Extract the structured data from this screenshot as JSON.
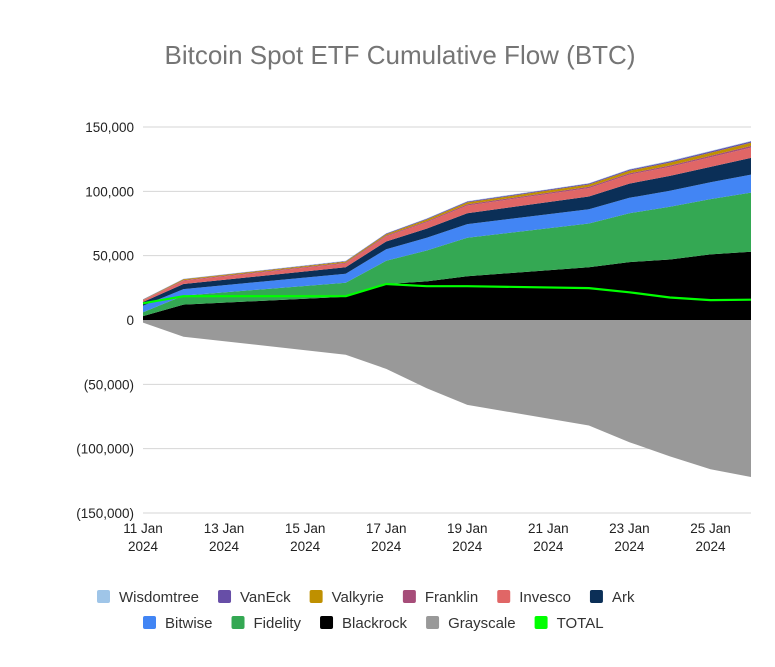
{
  "chart_data": {
    "type": "area",
    "title": "Bitcoin Spot ETF Cumulative Flow (BTC)",
    "xlabel": "",
    "ylabel": "",
    "ylim": [
      -150000,
      150000
    ],
    "yticks": [
      150000,
      100000,
      50000,
      0,
      -50000,
      -100000,
      -150000
    ],
    "ytick_labels": [
      "150,000",
      "100,000",
      "50,000",
      "0",
      "(50,000)",
      "(100,000)",
      "(150,000)"
    ],
    "xticks": [
      {
        "index": 0,
        "line1": "11 Jan",
        "line2": "2024"
      },
      {
        "index": 2,
        "line1": "13 Jan",
        "line2": "2024"
      },
      {
        "index": 4,
        "line1": "15 Jan",
        "line2": "2024"
      },
      {
        "index": 6,
        "line1": "17 Jan",
        "line2": "2024"
      },
      {
        "index": 8,
        "line1": "19 Jan",
        "line2": "2024"
      },
      {
        "index": 10,
        "line1": "21 Jan",
        "line2": "2024"
      },
      {
        "index": 12,
        "line1": "23 Jan",
        "line2": "2024"
      },
      {
        "index": 14,
        "line1": "25 Jan",
        "line2": "2024"
      }
    ],
    "x": [
      "11 Jan",
      "12 Jan",
      "16 Jan",
      "17 Jan",
      "18 Jan",
      "19 Jan",
      "22 Jan",
      "23 Jan",
      "24 Jan",
      "25 Jan",
      "26 Jan"
    ],
    "x_index": [
      0,
      1,
      5,
      6,
      7,
      8,
      11,
      12,
      13,
      14,
      15
    ],
    "positive_series_stacked_order": [
      "Blackrock",
      "Fidelity",
      "Bitwise",
      "Ark",
      "Invesco",
      "Franklin",
      "Valkyrie",
      "VanEck",
      "Wisdomtree"
    ],
    "series": [
      {
        "name": "Blackrock",
        "color": "#000000",
        "values": [
          3000,
          12000,
          18000,
          28000,
          30000,
          34000,
          41000,
          45000,
          47000,
          51000,
          53000
        ]
      },
      {
        "name": "Fidelity",
        "color": "#34a853",
        "values": [
          3000,
          7000,
          11000,
          18000,
          24000,
          30000,
          34000,
          38000,
          41000,
          43000,
          46000
        ]
      },
      {
        "name": "Bitwise",
        "color": "#4285f4",
        "values": [
          5000,
          5000,
          7000,
          9000,
          10000,
          10500,
          11000,
          12000,
          12500,
          13000,
          14000
        ]
      },
      {
        "name": "Ark",
        "color": "#0b2f57",
        "values": [
          3000,
          4000,
          5000,
          6000,
          7000,
          8500,
          10000,
          11000,
          11500,
          12000,
          13000
        ]
      },
      {
        "name": "Invesco",
        "color": "#e06666",
        "values": [
          1200,
          2500,
          3000,
          4000,
          5000,
          6000,
          6500,
          7000,
          7000,
          7500,
          8000
        ]
      },
      {
        "name": "Franklin",
        "color": "#a64d79",
        "values": [
          300,
          500,
          600,
          700,
          800,
          900,
          1000,
          1000,
          1100,
          1200,
          1300
        ]
      },
      {
        "name": "Valkyrie",
        "color": "#bf9000",
        "values": [
          300,
          600,
          800,
          1000,
          1300,
          1500,
          1800,
          2000,
          2200,
          2300,
          2400
        ]
      },
      {
        "name": "VanEck",
        "color": "#674ea7",
        "values": [
          200,
          300,
          400,
          500,
          600,
          700,
          800,
          900,
          1000,
          1000,
          1100
        ]
      },
      {
        "name": "Wisdomtree",
        "color": "#9fc5e8",
        "values": [
          100,
          100,
          200,
          200,
          300,
          300,
          300,
          400,
          400,
          400,
          400
        ]
      },
      {
        "name": "Grayscale",
        "color": "#999999",
        "values": [
          -2000,
          -13000,
          -27000,
          -38000,
          -53000,
          -66000,
          -82000,
          -95000,
          -106000,
          -116000,
          -122000
        ]
      },
      {
        "name": "TOTAL",
        "color": "#00ff00",
        "values": [
          13000,
          18500,
          18500,
          28000,
          26300,
          26300,
          24800,
          21500,
          17500,
          15500,
          15800
        ]
      }
    ],
    "legend": {
      "position": "bottom",
      "rows": [
        [
          "Wisdomtree",
          "VanEck",
          "Valkyrie",
          "Franklin",
          "Invesco",
          "Ark"
        ],
        [
          "Bitwise",
          "Fidelity",
          "Blackrock",
          "Grayscale",
          "TOTAL"
        ]
      ]
    },
    "grid": true
  }
}
